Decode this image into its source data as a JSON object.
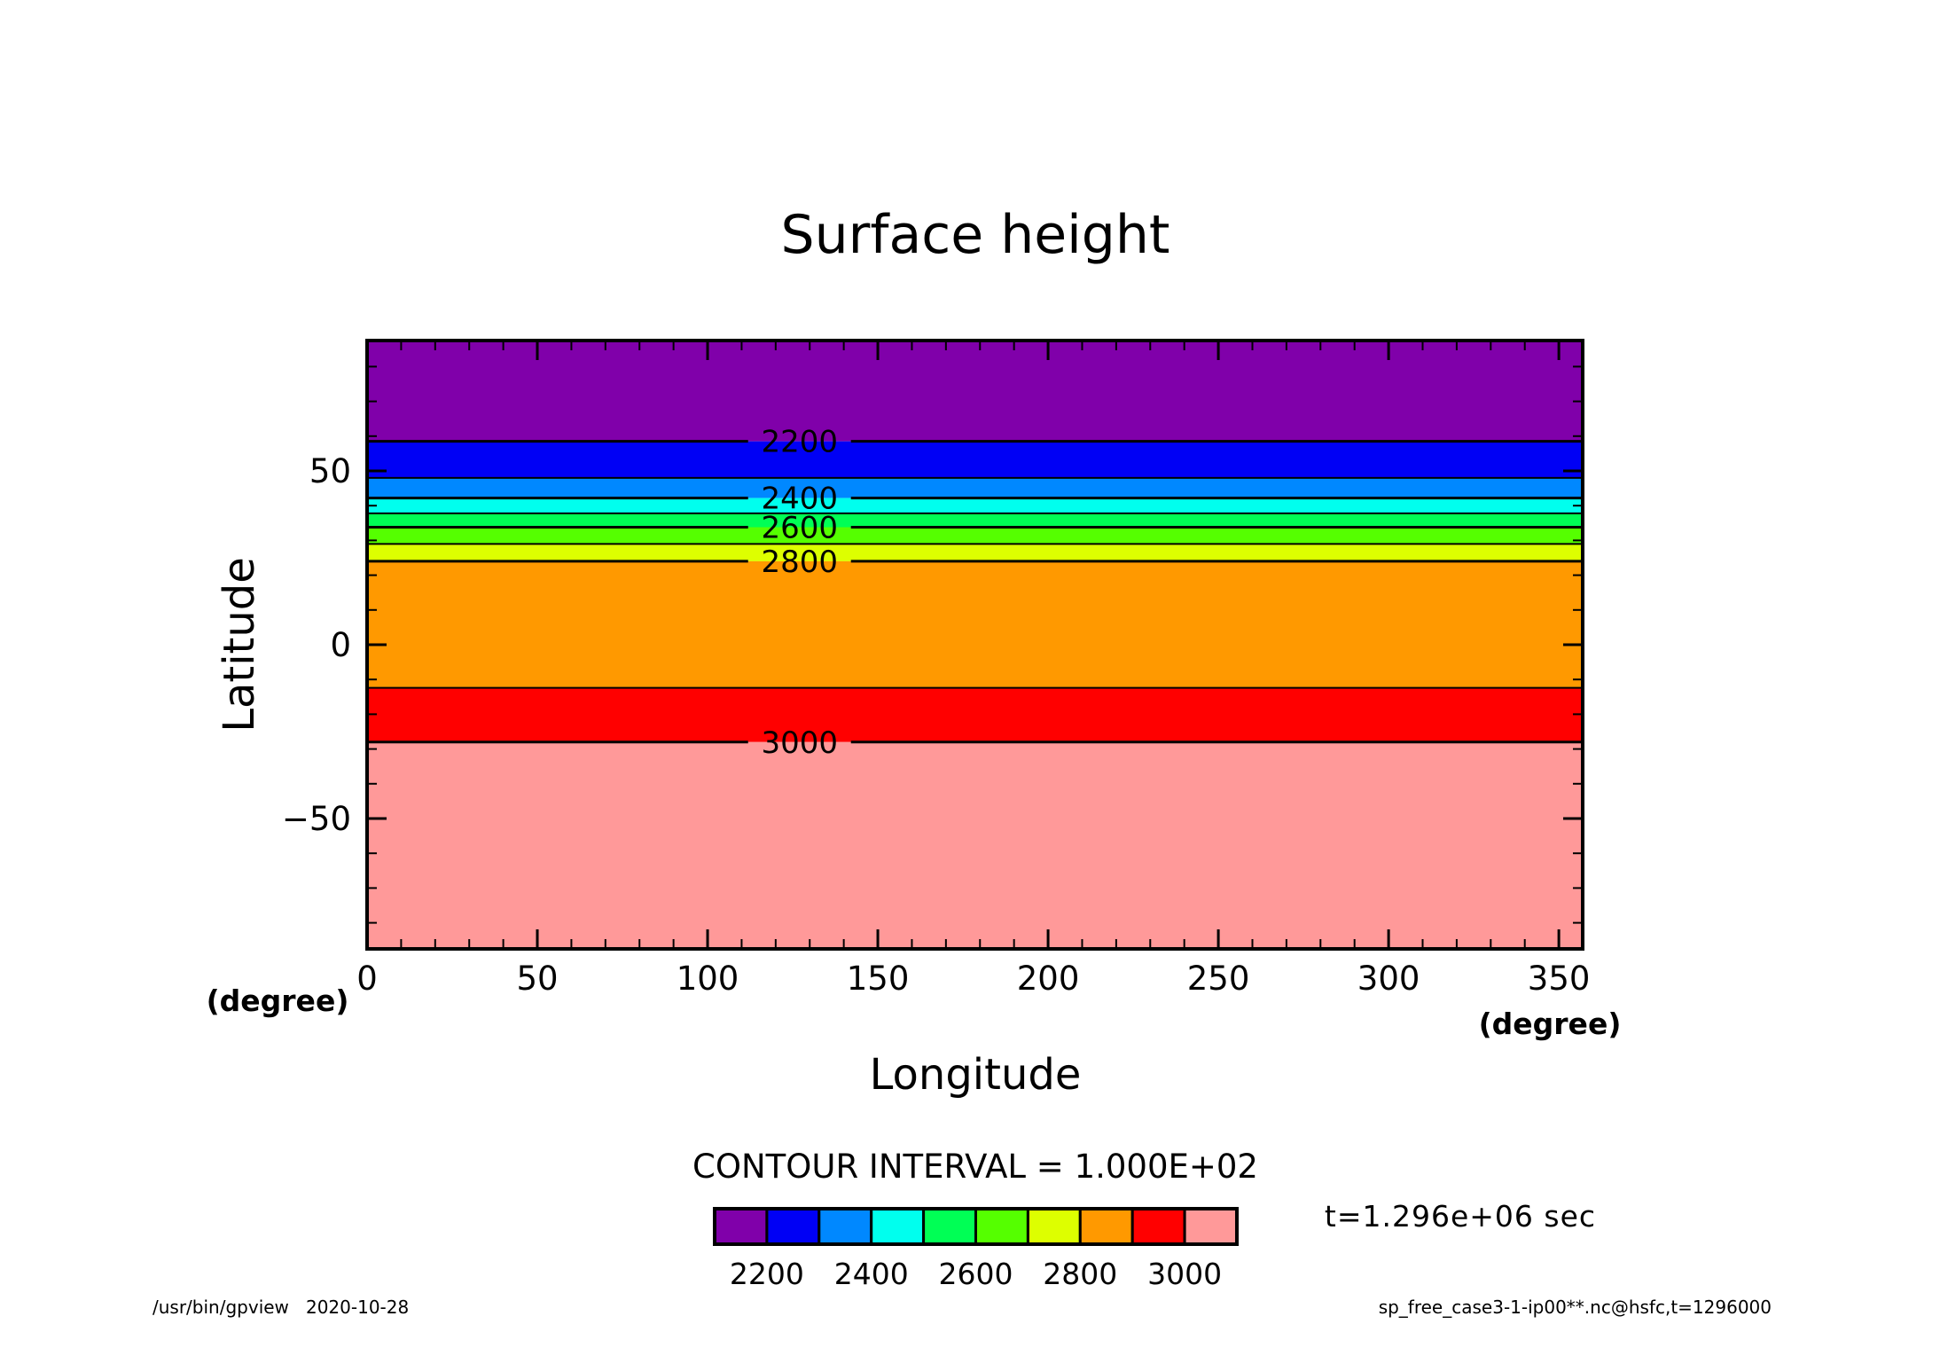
{
  "chart_data": {
    "type": "contour",
    "title": "Surface height",
    "xlabel": "Longitude",
    "ylabel": "Latitude",
    "x_units_left": "(degree)",
    "x_units_right": "(degree)",
    "xlim": [
      0,
      357
    ],
    "ylim": [
      -87.5,
      87.5
    ],
    "x_ticks": [
      0,
      50,
      100,
      150,
      200,
      250,
      300,
      350
    ],
    "x_tick_labels": [
      "0",
      "50",
      "100",
      "150",
      "200",
      "250",
      "300",
      "350"
    ],
    "y_ticks": [
      50,
      0,
      -50
    ],
    "y_tick_labels": [
      "50",
      "0",
      "−50"
    ],
    "bands": [
      {
        "from": 58.5,
        "to": 87.5,
        "color": "#8000aa"
      },
      {
        "from": 48.0,
        "to": 58.5,
        "color": "#0000f5"
      },
      {
        "from": 42.2,
        "to": 48.0,
        "color": "#0088ff"
      },
      {
        "from": 37.8,
        "to": 42.2,
        "color": "#00ffee"
      },
      {
        "from": 33.8,
        "to": 37.8,
        "color": "#00ff55"
      },
      {
        "from": 29.0,
        "to": 33.8,
        "color": "#55ff00"
      },
      {
        "from": 24.0,
        "to": 29.0,
        "color": "#ddff00"
      },
      {
        "from": -12.4,
        "to": 24.0,
        "color": "#ff9900"
      },
      {
        "from": -28.0,
        "to": -12.4,
        "color": "#ff0000"
      },
      {
        "from": -87.5,
        "to": -28.0,
        "color": "#ff9999"
      }
    ],
    "contours": [
      {
        "lat": 58.5,
        "label": "2200"
      },
      {
        "lat": 48.0,
        "label": ""
      },
      {
        "lat": 42.2,
        "label": "2400"
      },
      {
        "lat": 37.8,
        "label": ""
      },
      {
        "lat": 33.8,
        "label": "2600"
      },
      {
        "lat": 29.0,
        "label": ""
      },
      {
        "lat": 24.0,
        "label": "2800"
      },
      {
        "lat": -12.4,
        "label": ""
      },
      {
        "lat": -28.0,
        "label": "3000"
      }
    ],
    "contour_label_lon": 127,
    "contour_interval_label": "CONTOUR INTERVAL = 1.000E+02",
    "colorbar": {
      "colors": [
        "#8000aa",
        "#0000f5",
        "#0088ff",
        "#00ffee",
        "#00ff55",
        "#55ff00",
        "#ddff00",
        "#ff9900",
        "#ff0000",
        "#ff9999"
      ],
      "tick_labels": [
        "2200",
        "2400",
        "2600",
        "2800",
        "3000"
      ]
    },
    "time_label": "t=1.296e+06 sec",
    "footer_left": "/usr/bin/gpview   2020-10-28",
    "footer_right": "sp_free_case3-1-ip00**.nc@hsfc,t=1296000"
  }
}
